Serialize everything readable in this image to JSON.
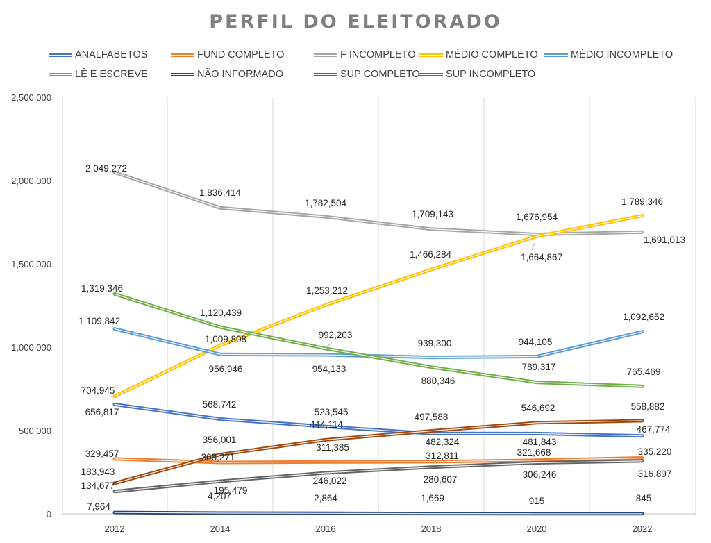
{
  "chart_data": {
    "type": "line",
    "title": "PERFIL DO ELEITORADO",
    "xlabel": "",
    "ylabel": "",
    "x": [
      "2012",
      "2014",
      "2016",
      "2018",
      "2020",
      "2022"
    ],
    "ylim": [
      0,
      2500000
    ],
    "yticks": [
      "0",
      "500,000",
      "1,000,000",
      "1,500,000",
      "2,000,000",
      "2,500,000"
    ],
    "grid": "vertical",
    "legend": "top",
    "series": [
      {
        "name": "ANALFABETOS",
        "color": "#4472c4",
        "values": [
          656817,
          568742,
          523545,
          482324,
          481843,
          467774
        ],
        "labels": [
          "656,817",
          "568,742",
          "523,545",
          "482,324",
          "481,843",
          "467,774"
        ]
      },
      {
        "name": "FUND COMPLETO",
        "color": "#ed7d31",
        "values": [
          329457,
          308271,
          311385,
          312811,
          321668,
          335220
        ],
        "labels": [
          "329,457",
          "308,271",
          "311,385",
          "312,811",
          "321,668",
          "335,220"
        ]
      },
      {
        "name": "F INCOMPLETO",
        "color": "#a5a5a5",
        "values": [
          2049272,
          1836414,
          1782504,
          1709143,
          1676954,
          1691013
        ],
        "labels": [
          "2,049,272",
          "1,836,414",
          "1,782,504",
          "1,709,143",
          "1,676,954",
          "1,691,013"
        ]
      },
      {
        "name": "MÉDIO COMPLETO",
        "color": "#ffc000",
        "values": [
          704945,
          1009808,
          1253212,
          1466284,
          1664867,
          1789346
        ],
        "labels": [
          "704,945",
          "1,009,808",
          "1,253,212",
          "1,466,284",
          "1,664,867",
          "1,789,346"
        ]
      },
      {
        "name": "MÉDIO INCOMPLETO",
        "color": "#5b9bd5",
        "values": [
          1109842,
          956946,
          954133,
          939300,
          944105,
          1092652
        ],
        "labels": [
          "1,109,842",
          "956,946",
          "954,133",
          "939,300",
          "944,105",
          "1,092,652"
        ]
      },
      {
        "name": "LÊ E ESCREVE",
        "color": "#70ad47",
        "values": [
          1319346,
          1120439,
          992203,
          880346,
          789317,
          765469
        ],
        "labels": [
          "1,319,346",
          "1,120,439",
          "992,203",
          "880,346",
          "789,317",
          "765,469"
        ]
      },
      {
        "name": "NÃO INFORMADO",
        "color": "#264478",
        "values": [
          7964,
          4207,
          2864,
          1669,
          915,
          845
        ],
        "labels": [
          "7,964",
          "4,207",
          "2,864",
          "1,669",
          "915",
          "845"
        ]
      },
      {
        "name": "SUP COMPLETO",
        "color": "#9e480e",
        "values": [
          183943,
          356001,
          444114,
          497588,
          546692,
          558882
        ],
        "labels": [
          "183,943",
          "356,001",
          "444,114",
          "497,588",
          "546,692",
          "558,882"
        ]
      },
      {
        "name": "SUP INCOMPLETO",
        "color": "#636363",
        "values": [
          134677,
          195479,
          246022,
          280607,
          306246,
          316897
        ],
        "labels": [
          "134,677",
          "195,479",
          "246,022",
          "280,607",
          "306,246",
          "316,897"
        ]
      }
    ]
  }
}
